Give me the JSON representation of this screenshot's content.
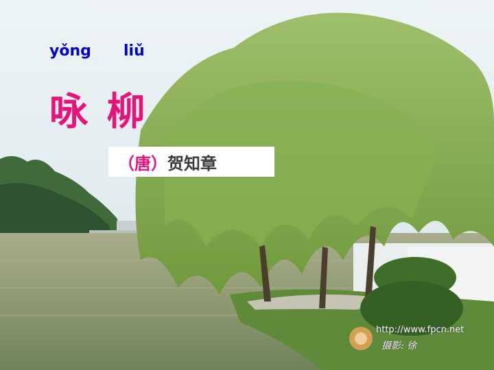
{
  "pinyin": {
    "first": "yǒng",
    "second": "liǔ"
  },
  "title": "咏 柳",
  "author": {
    "dynasty": "（唐）",
    "name": "贺知章"
  },
  "watermark": {
    "url": "http://www.fpcn.net"
  }
}
